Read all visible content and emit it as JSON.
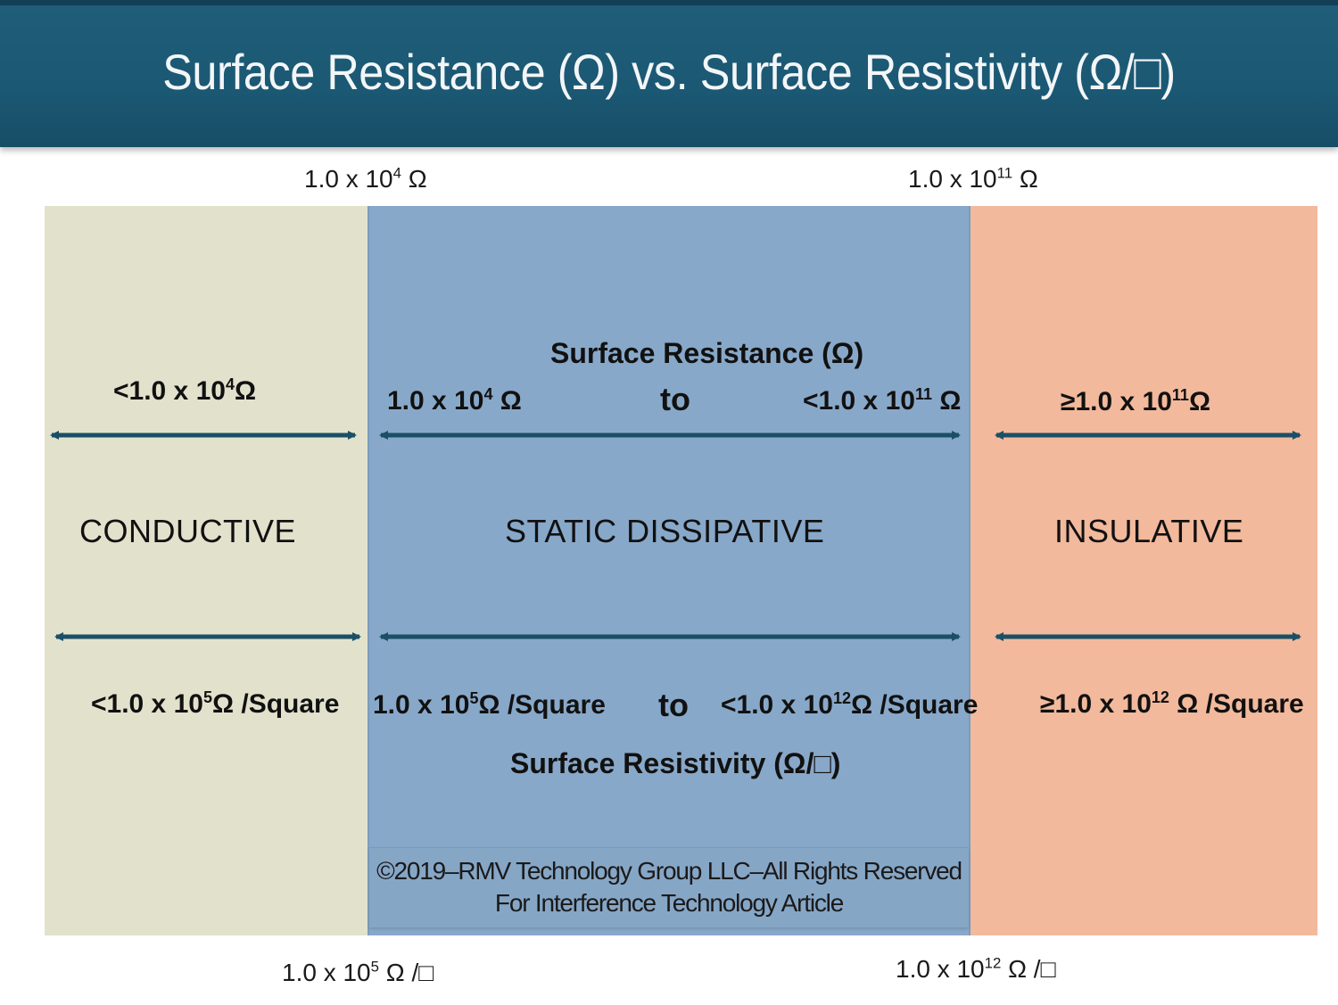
{
  "title": "Surface Resistance (Ω) vs. Surface Resistivity (Ω/□)",
  "top_bounds": {
    "left": {
      "base": "1.0 x 10",
      "exp": "4",
      "unit": " Ω"
    },
    "right": {
      "base": "1.0 x 10",
      "exp": "11",
      "unit": " Ω"
    }
  },
  "bottom_bounds": {
    "left": {
      "base": "1.0 x 10",
      "exp": "5",
      "unit": " Ω /□"
    },
    "right": {
      "base": "1.0 x 10",
      "exp": "12",
      "unit": " Ω /□"
    }
  },
  "columns": {
    "conductive": {
      "label": "CONDUCTIVE",
      "resistance": {
        "base": "<1.0 x 10",
        "exp": "4",
        "unit": "Ω"
      },
      "resistivity": {
        "base": "<1.0 x 10",
        "exp": "5",
        "unit": "Ω /Square"
      },
      "color": "#e2e2cc"
    },
    "static_dissipative": {
      "label": "STATIC  DISSIPATIVE",
      "resistance_heading": "Surface Resistance (Ω)",
      "resistance_low": {
        "base": "1.0 x 10",
        "exp": "4",
        "unit": " Ω"
      },
      "resistance_to": "to",
      "resistance_high": {
        "base": "<1.0 x 10",
        "exp": "11",
        "unit": " Ω"
      },
      "resistivity_low": {
        "base": "1.0 x 10",
        "exp": "5",
        "unit": "Ω /Square"
      },
      "resistivity_to": "to",
      "resistivity_high": {
        "base": "<1.0 x 10",
        "exp": "12",
        "unit": "Ω /Square"
      },
      "resistivity_heading": "Surface Resistivity (Ω/□)",
      "color": "#88a8c9"
    },
    "insulative": {
      "label": "INSULATIVE",
      "resistance": {
        "base": "≥1.0 x 10",
        "exp": "11",
        "unit": "Ω"
      },
      "resistivity": {
        "base": "≥1.0 x 10",
        "exp": "12",
        "unit": " Ω /Square"
      },
      "color": "#f2b99c"
    }
  },
  "copyright": {
    "line1": "©2019–RMV Technology Group LLC–All Rights Reserved",
    "line2": "For Interference  Technology Article"
  },
  "colors": {
    "title_bar": "#1b5873",
    "arrow": "#1b4f66"
  }
}
